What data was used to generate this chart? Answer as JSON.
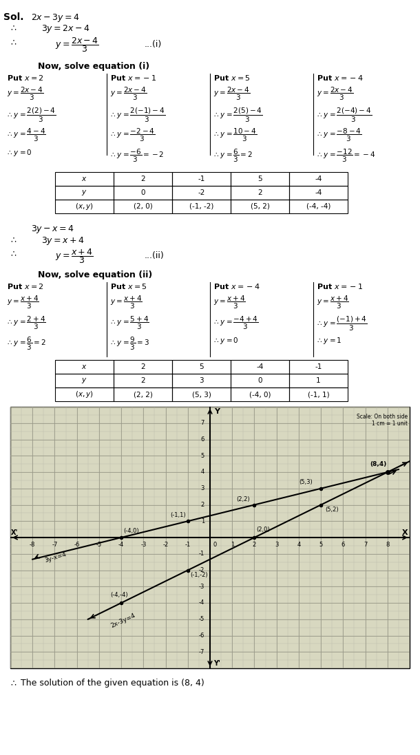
{
  "title_text": "Sol.",
  "eq1_lines": [
    "2x - 3y  =  4",
    "3y = 2x - 4",
    "y = \\frac{2x - 4}{3}",
    "...(i)"
  ],
  "eq2_lines": [
    "3y - x  =  4",
    "3y = x + 4",
    "y = \\frac{x + 4}{3}",
    "...(ii)"
  ],
  "table1": {
    "x_vals": [
      "2",
      "-1",
      "5",
      "-4"
    ],
    "y_vals": [
      "0",
      "-2",
      "2",
      "-4"
    ],
    "xy_vals": [
      "(2, 0)",
      "(-1, -2)",
      "(5, 2)",
      "(-4, -4)"
    ]
  },
  "table2": {
    "x_vals": [
      "2",
      "5",
      "-4",
      "-1"
    ],
    "y_vals": [
      "2",
      "3",
      "0",
      "1"
    ],
    "xy_vals": [
      "(2, 2)",
      "(5, 3)",
      "(-4, 0)",
      "(-1, 1)"
    ]
  },
  "graph": {
    "xlim": [
      -9,
      9
    ],
    "ylim": [
      -8,
      8
    ],
    "x_ticks": [
      -8,
      -7,
      -6,
      -5,
      -4,
      -3,
      -2,
      -1,
      0,
      1,
      2,
      3,
      4,
      5,
      6,
      7,
      8
    ],
    "y_ticks": [
      -7,
      -6,
      -5,
      -4,
      -3,
      -2,
      -1,
      0,
      1,
      2,
      3,
      4,
      5,
      6,
      7
    ],
    "line1_points": [
      [
        -4,
        -4
      ],
      [
        5,
        2
      ]
    ],
    "line2_points": [
      [
        -4,
        0
      ],
      [
        5,
        3
      ]
    ],
    "line1_label": "2x-3y=4",
    "line2_label": "3y-x=4",
    "line1_annotations": [
      [
        "(2,0)",
        2,
        0
      ],
      [
        "(-1,-2)",
        -1,
        -2
      ],
      [
        "(5,2)",
        5,
        2
      ],
      [
        "(-4,-4)",
        -4,
        -4
      ]
    ],
    "line2_annotations": [
      [
        "(2,2)",
        2,
        2
      ],
      [
        "(5,3)",
        5,
        3
      ],
      [
        "(-4,0)",
        -4,
        0
      ],
      [
        "(-1,1)",
        -1,
        1
      ]
    ],
    "intersection": [
      8,
      4
    ],
    "intersection_label": "(8,4)",
    "scale_note": "Scale: On both side\n1 cm = 1 unit",
    "bg_color": "#d8d8c8",
    "grid_color": "#aaaaaa",
    "line1_color": "#000000",
    "line2_color": "#000000"
  },
  "solution_text": "The solution of the given equation is (8, 4)",
  "therefore_symbol": "∴"
}
